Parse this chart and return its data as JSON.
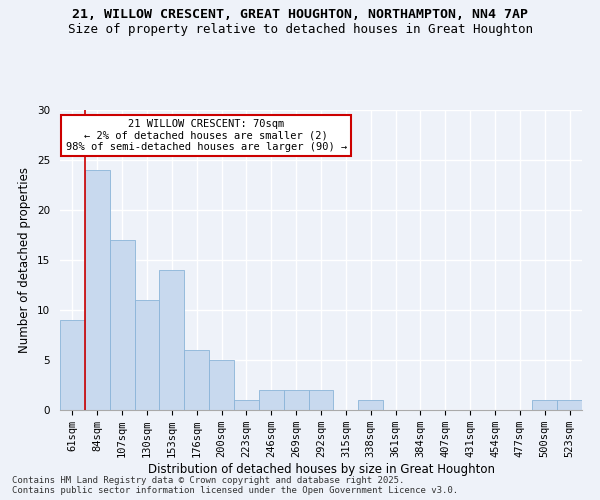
{
  "title1": "21, WILLOW CRESCENT, GREAT HOUGHTON, NORTHAMPTON, NN4 7AP",
  "title2": "Size of property relative to detached houses in Great Houghton",
  "xlabel": "Distribution of detached houses by size in Great Houghton",
  "ylabel": "Number of detached properties",
  "categories": [
    "61sqm",
    "84sqm",
    "107sqm",
    "130sqm",
    "153sqm",
    "176sqm",
    "200sqm",
    "223sqm",
    "246sqm",
    "269sqm",
    "292sqm",
    "315sqm",
    "338sqm",
    "361sqm",
    "384sqm",
    "407sqm",
    "431sqm",
    "454sqm",
    "477sqm",
    "500sqm",
    "523sqm"
  ],
  "values": [
    9,
    24,
    17,
    11,
    14,
    6,
    5,
    1,
    2,
    2,
    2,
    0,
    1,
    0,
    0,
    0,
    0,
    0,
    0,
    1,
    1
  ],
  "bar_color": "#c8d9ee",
  "bar_edge_color": "#8ab4d8",
  "annotation_box_color": "#ffffff",
  "annotation_box_edge": "#cc0000",
  "annotation_line_color": "#cc0000",
  "annotation_text": "21 WILLOW CRESCENT: 70sqm\n← 2% of detached houses are smaller (2)\n98% of semi-detached houses are larger (90) →",
  "ylim": [
    0,
    30
  ],
  "yticks": [
    0,
    5,
    10,
    15,
    20,
    25,
    30
  ],
  "footer1": "Contains HM Land Registry data © Crown copyright and database right 2025.",
  "footer2": "Contains public sector information licensed under the Open Government Licence v3.0.",
  "background_color": "#eef2f9",
  "grid_color": "#ffffff",
  "title1_fontsize": 9.5,
  "title2_fontsize": 9,
  "axis_label_fontsize": 8.5,
  "tick_fontsize": 7.5,
  "annotation_fontsize": 7.5,
  "footer_fontsize": 6.5
}
